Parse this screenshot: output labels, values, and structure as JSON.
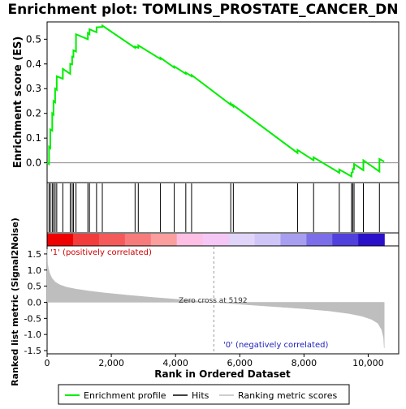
{
  "title": "Enrichment plot: TOMLINS_PROSTATE_CANCER_DN",
  "top_ylabel": "Enrichment score (ES)",
  "bottom_ylabel": "Ranked list metric (Signal2Noise)",
  "xlabel": "Rank in Ordered Dataset",
  "zero_cross_text": "Zero cross at 5192",
  "pos_label": "'1' (positively correlated)",
  "neg_label": "'0' (negatively correlated)",
  "legend": {
    "enrichment": "Enrichment profile",
    "hits": "Hits",
    "ranking": "Ranking metric scores"
  },
  "colors": {
    "enrichment_line": "#00ee00",
    "hit_line": "#000000",
    "metric_fill": "#bebebe",
    "pos_text": "#cc0000",
    "neg_text": "#2222bb"
  },
  "chart_data": {
    "type": "line",
    "x_ticks": [
      "0",
      "2,000",
      "4,000",
      "6,000",
      "8,000",
      "10,000"
    ],
    "x_tick_values": [
      0,
      2000,
      4000,
      6000,
      8000,
      10000
    ],
    "xlim": [
      0,
      10950
    ],
    "n_genes": 10500,
    "zero_cross": 5192,
    "es_panel": {
      "ylim": [
        -0.08,
        0.57
      ],
      "y_ticks": [
        "0.0",
        "0.1",
        "0.2",
        "0.3",
        "0.4",
        "0.5"
      ],
      "y_tick_values": [
        0,
        0.1,
        0.2,
        0.3,
        0.4,
        0.5
      ],
      "profile_x": [
        0,
        60,
        60,
        100,
        100,
        160,
        160,
        200,
        200,
        250,
        250,
        300,
        300,
        490,
        490,
        720,
        720,
        780,
        780,
        820,
        820,
        900,
        900,
        1270,
        1270,
        1320,
        1320,
        1540,
        1540,
        1720,
        1720,
        2740,
        2740,
        2840,
        2840,
        3530,
        3530,
        3960,
        3960,
        4320,
        4320,
        4500,
        4500,
        5720,
        5720,
        5800,
        5800,
        7800,
        7800,
        8300,
        8300,
        9100,
        9100,
        9480,
        9480,
        9520,
        9520,
        9560,
        9560,
        9850,
        9850,
        10350,
        10350,
        10500
      ],
      "profile_y": [
        0.0,
        -0.005,
        0.065,
        0.06,
        0.135,
        0.13,
        0.2,
        0.195,
        0.25,
        0.245,
        0.3,
        0.295,
        0.35,
        0.34,
        0.38,
        0.36,
        0.4,
        0.398,
        0.43,
        0.428,
        0.455,
        0.45,
        0.52,
        0.5,
        0.525,
        0.52,
        0.54,
        0.528,
        0.548,
        0.55,
        0.555,
        0.465,
        0.47,
        0.465,
        0.475,
        0.42,
        0.425,
        0.385,
        0.39,
        0.36,
        0.365,
        0.35,
        0.355,
        0.235,
        0.24,
        0.228,
        0.233,
        0.04,
        0.052,
        0.01,
        0.022,
        -0.04,
        -0.027,
        -0.055,
        -0.04,
        -0.038,
        -0.025,
        -0.025,
        -0.005,
        -0.03,
        0.01,
        -0.035,
        0.015,
        0.005
      ]
    },
    "hits": [
      60,
      100,
      160,
      200,
      250,
      300,
      490,
      720,
      780,
      820,
      900,
      1270,
      1320,
      1540,
      1720,
      2740,
      2840,
      3530,
      3960,
      4320,
      4500,
      5720,
      5800,
      7800,
      8300,
      9100,
      9480,
      9520,
      9560,
      9850,
      10350
    ],
    "metric_panel": {
      "ylim": [
        -1.6,
        1.75
      ],
      "y_ticks": [
        "1.5",
        "1.0",
        "0.5",
        "0.0",
        "-0.5",
        "-1.0",
        "-1.5"
      ],
      "y_tick_values": [
        1.5,
        1.0,
        0.5,
        0.0,
        -0.5,
        -1.0,
        -1.5
      ],
      "curve_x": [
        0,
        15,
        40,
        80,
        150,
        250,
        400,
        600,
        900,
        1300,
        1800,
        2500,
        3300,
        4200,
        5192,
        6000,
        7000,
        8000,
        8800,
        9400,
        9800,
        10100,
        10300,
        10420,
        10480,
        10500
      ],
      "curve_y": [
        1.65,
        1.2,
        1.05,
        0.9,
        0.75,
        0.63,
        0.54,
        0.47,
        0.41,
        0.35,
        0.29,
        0.22,
        0.15,
        0.08,
        0.0,
        -0.06,
        -0.13,
        -0.2,
        -0.27,
        -0.35,
        -0.43,
        -0.53,
        -0.65,
        -0.85,
        -1.1,
        -1.42
      ]
    },
    "heat_bar_colors": [
      "#ee0000",
      "#f23b3b",
      "#f45a5a",
      "#f77b7b",
      "#fa9e9e",
      "#fdc0e4",
      "#f5c7f5",
      "#e0d4f8",
      "#cfc6f7",
      "#a89ef0",
      "#7b6ee8",
      "#5040dc",
      "#2a10c8"
    ]
  }
}
